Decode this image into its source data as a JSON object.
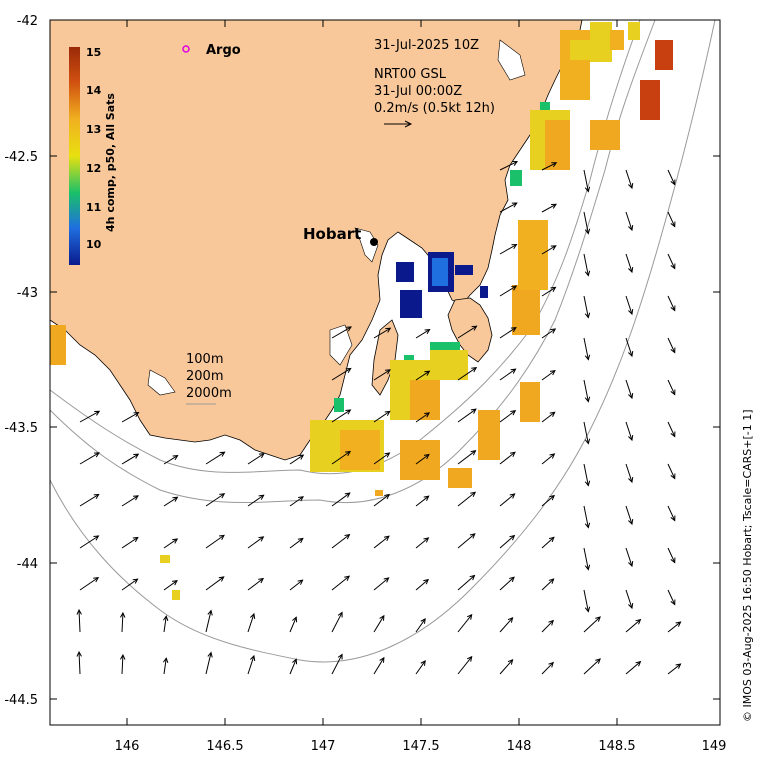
{
  "header": {
    "date": "31-Jul-2025 10Z",
    "product": "NRT00 GSL",
    "product_time": "31-Jul 00:00Z",
    "scale": "0.2m/s (0.5kt 12h)"
  },
  "legend": {
    "argo": "Argo"
  },
  "places": {
    "hobart": "Hobart"
  },
  "depth_labels": [
    "100m",
    "200m",
    "2000m"
  ],
  "colorbar": {
    "title": "4h comp, p50, All Sats",
    "ticks": [
      "10",
      "11",
      "12",
      "13",
      "14",
      "15"
    ],
    "colors": [
      "#0a1a8c",
      "#1f6fe0",
      "#1ac06a",
      "#e8e010",
      "#f0b020",
      "#d05010",
      "#9a2a08"
    ]
  },
  "axes": {
    "x_ticks": [
      "146",
      "146.5",
      "147",
      "147.5",
      "148",
      "148.5",
      "149"
    ],
    "y_ticks": [
      "-42",
      "-42.5",
      "-43",
      "-43.5",
      "-44",
      "-44.5"
    ]
  },
  "credit": "© IMOS 03-Aug-2025 16:50 Hobart; Tscale=CARS+[-1 1]",
  "colors": {
    "land": "#f9c89a",
    "sst_cold": "#0a1a8c",
    "sst_mid": "#e8d020",
    "sst_warm": "#f0a820",
    "sst_hot": "#c84010"
  }
}
